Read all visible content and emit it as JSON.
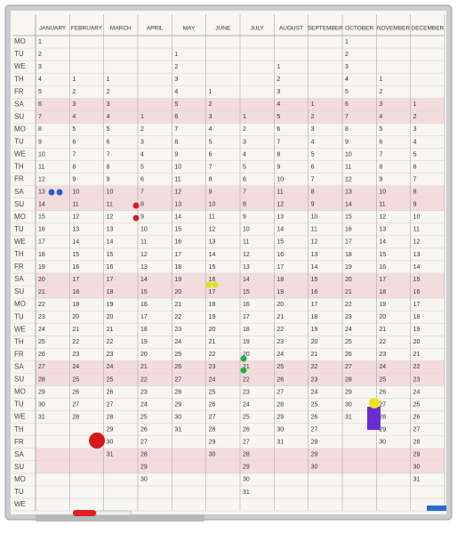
{
  "board": {
    "weekdays": [
      "MO",
      "TU",
      "WE",
      "TH",
      "FR",
      "SA",
      "SU",
      "MO",
      "TU",
      "WE",
      "TH",
      "FR",
      "SA",
      "SU",
      "MO",
      "TU",
      "WE",
      "TH",
      "FR",
      "SA",
      "SU",
      "MO",
      "TU",
      "WE",
      "TH",
      "FR",
      "SA",
      "SU",
      "MO",
      "TU",
      "WE",
      "TH",
      "FR",
      "SA",
      "SU",
      "MO",
      "TU",
      "WE"
    ],
    "months": [
      {
        "name": "JANUARY",
        "days": [
          1,
          2,
          3,
          4,
          5,
          6,
          7,
          8,
          9,
          10,
          11,
          12,
          13,
          14,
          15,
          16,
          17,
          18,
          19,
          20,
          21,
          22,
          23,
          24,
          25,
          26,
          27,
          28,
          29,
          30,
          31
        ]
      },
      {
        "name": "FEBRUARY",
        "days": [
          null,
          null,
          null,
          1,
          2,
          3,
          4,
          5,
          6,
          7,
          8,
          9,
          10,
          11,
          12,
          13,
          14,
          15,
          16,
          17,
          18,
          19,
          20,
          21,
          22,
          23,
          24,
          25,
          26,
          27,
          28
        ]
      },
      {
        "name": "MARCH",
        "days": [
          null,
          null,
          null,
          1,
          2,
          3,
          4,
          5,
          6,
          7,
          8,
          9,
          10,
          11,
          12,
          13,
          14,
          15,
          16,
          17,
          18,
          19,
          20,
          21,
          22,
          23,
          24,
          25,
          26,
          27,
          28,
          29,
          30,
          31
        ]
      },
      {
        "name": "APRIL",
        "days": [
          null,
          null,
          null,
          null,
          null,
          null,
          1,
          2,
          3,
          4,
          5,
          6,
          7,
          8,
          9,
          10,
          11,
          12,
          13,
          14,
          15,
          16,
          17,
          18,
          19,
          20,
          21,
          22,
          23,
          24,
          25,
          26,
          27,
          28,
          29,
          30
        ]
      },
      {
        "name": "MAY",
        "days": [
          null,
          1,
          2,
          3,
          4,
          5,
          6,
          7,
          8,
          9,
          10,
          11,
          12,
          13,
          14,
          15,
          16,
          17,
          18,
          19,
          20,
          21,
          22,
          23,
          24,
          25,
          26,
          27,
          28,
          29,
          30,
          31
        ]
      },
      {
        "name": "JUNE",
        "days": [
          null,
          null,
          null,
          null,
          1,
          2,
          3,
          4,
          5,
          6,
          7,
          8,
          9,
          10,
          11,
          12,
          13,
          14,
          15,
          16,
          17,
          18,
          19,
          20,
          21,
          22,
          23,
          24,
          25,
          26,
          27,
          28,
          29,
          30
        ]
      },
      {
        "name": "JULY",
        "days": [
          null,
          null,
          null,
          null,
          null,
          null,
          1,
          2,
          3,
          4,
          5,
          6,
          7,
          8,
          9,
          10,
          11,
          12,
          13,
          14,
          15,
          16,
          17,
          18,
          19,
          20,
          21,
          22,
          23,
          24,
          25,
          26,
          27,
          28,
          29,
          30,
          31
        ]
      },
      {
        "name": "AUGUST",
        "days": [
          null,
          null,
          1,
          2,
          3,
          4,
          5,
          6,
          7,
          8,
          9,
          10,
          11,
          12,
          13,
          14,
          15,
          16,
          17,
          18,
          19,
          20,
          21,
          22,
          23,
          24,
          25,
          26,
          27,
          28,
          29,
          30,
          31
        ]
      },
      {
        "name": "SEPTEMBER",
        "days": [
          null,
          null,
          null,
          null,
          null,
          1,
          2,
          3,
          4,
          5,
          6,
          7,
          8,
          9,
          10,
          11,
          12,
          13,
          14,
          15,
          16,
          17,
          18,
          19,
          20,
          21,
          22,
          23,
          24,
          25,
          26,
          27,
          28,
          29,
          30
        ]
      },
      {
        "name": "OCTOBER",
        "days": [
          1,
          2,
          3,
          4,
          5,
          6,
          7,
          8,
          9,
          10,
          11,
          12,
          13,
          14,
          15,
          16,
          17,
          18,
          19,
          20,
          21,
          22,
          23,
          24,
          25,
          26,
          27,
          28,
          29,
          30,
          31
        ]
      },
      {
        "name": "NOVEMBER",
        "days": [
          null,
          null,
          null,
          1,
          2,
          3,
          4,
          5,
          6,
          7,
          8,
          9,
          10,
          11,
          12,
          13,
          14,
          15,
          16,
          17,
          18,
          19,
          20,
          21,
          22,
          23,
          24,
          25,
          26,
          27,
          28,
          29,
          30
        ]
      },
      {
        "name": "DECEMBER",
        "days": [
          null,
          null,
          null,
          null,
          null,
          1,
          2,
          3,
          4,
          5,
          6,
          7,
          8,
          9,
          10,
          11,
          12,
          13,
          14,
          15,
          16,
          17,
          18,
          19,
          20,
          21,
          22,
          23,
          24,
          25,
          26,
          27,
          28,
          29,
          30,
          31
        ]
      }
    ]
  }
}
